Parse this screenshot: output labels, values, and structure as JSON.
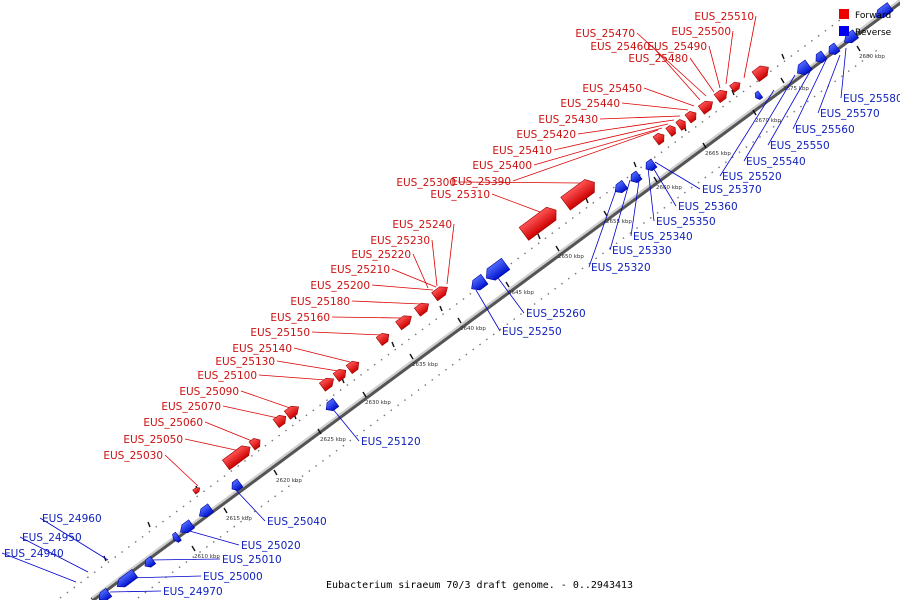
{
  "title": "Eubacterium siraeum 70/3 draft genome. - 0..2943413",
  "legend": [
    {
      "label": "Forward",
      "color": "#ee0000"
    },
    {
      "label": "Reverse",
      "color": "#0000ee"
    }
  ],
  "axis_ticks": [
    "2610 kbp",
    "2615 kbp",
    "2620 kbp",
    "2625 kbp",
    "2630 kbp",
    "2635 kbp",
    "2640 kbp",
    "2645 kbp",
    "2650 kbp",
    "2655 kbp",
    "2660 kbp",
    "2665 kbp",
    "2670 kbp",
    "2675 kbp",
    "2680 kbp"
  ],
  "forward_genes": [
    "EUS_25030",
    "EUS_25050",
    "EUS_25060",
    "EUS_25070",
    "EUS_25090",
    "EUS_25100",
    "EUS_25130",
    "EUS_25140",
    "EUS_25150",
    "EUS_25160",
    "EUS_25180",
    "EUS_25200",
    "EUS_25210",
    "EUS_25220",
    "EUS_25230",
    "EUS_25240",
    "EUS_25310",
    "EUS_25300",
    "EUS_25390",
    "EUS_25400",
    "EUS_25410",
    "EUS_25420",
    "EUS_25430",
    "EUS_25440",
    "EUS_25450",
    "EUS_25460",
    "EUS_25470",
    "EUS_25480",
    "EUS_25490",
    "EUS_25500",
    "EUS_25510"
  ],
  "reverse_genes": [
    "EUS_24960",
    "EUS_24950",
    "EUS_24940",
    "EUS_24970",
    "EUS_25000",
    "EUS_25010",
    "EUS_25020",
    "EUS_25040",
    "EUS_25120",
    "EUS_25250",
    "EUS_25260",
    "EUS_25320",
    "EUS_25330",
    "EUS_25340",
    "EUS_25350",
    "EUS_25360",
    "EUS_25370",
    "EUS_25520",
    "EUS_25540",
    "EUS_25550",
    "EUS_25560",
    "EUS_25570",
    "EUS_25580"
  ]
}
